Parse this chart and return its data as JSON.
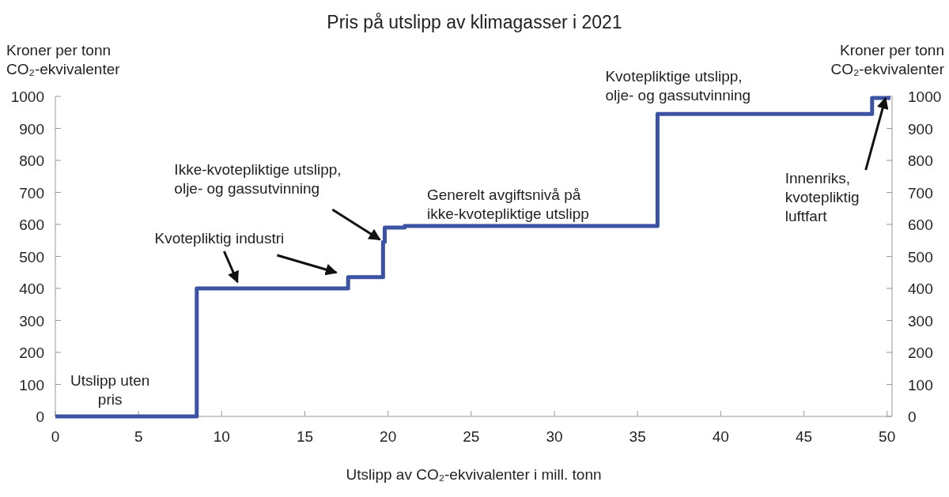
{
  "chart_data": {
    "type": "step",
    "title": "Pris på utslipp av klimagasser i 2021",
    "xlabel": "Utslipp av CO₂-ekvivalenter i mill. tonn",
    "ylabel": "Kroner per tonn\nCO₂-ekvivalenter",
    "y2label": "Kroner per tonn\nCO₂-ekvivalenter",
    "series": [
      {
        "color": "#3c53a4",
        "x": [
          0,
          8.5,
          17.6,
          19.7,
          19.8,
          21,
          36.2,
          49.1,
          50.2
        ],
        "values": [
          0,
          400,
          435,
          545,
          590,
          595,
          945,
          995,
          995
        ]
      }
    ],
    "xlim": [
      0,
      50.3
    ],
    "xticks": [
      0,
      5,
      10,
      15,
      20,
      25,
      30,
      35,
      40,
      45,
      50
    ],
    "ylim": [
      0,
      1000
    ],
    "yticks": [
      0,
      100,
      200,
      300,
      400,
      500,
      600,
      700,
      800,
      900,
      1000
    ],
    "y2lim": [
      0,
      1000
    ],
    "y2ticks": [
      0,
      100,
      200,
      300,
      400,
      500,
      600,
      700,
      800,
      900,
      1000
    ],
    "grid": false,
    "annotations": [
      {
        "text": "Utslipp uten\npris",
        "x": 4,
        "y": 0
      },
      {
        "text": "Kvotepliktig industri",
        "x": 11,
        "y": 400
      },
      {
        "text": "Ikke-kvotepliktige utslipp,\nolje- og gassutvinning",
        "x": 19.7,
        "y": 545
      },
      {
        "text": "Generelt avgiftsnivå på\nikke-kvotepliktige utslipp",
        "x": 28,
        "y": 595
      },
      {
        "text": "Kvotepliktige utslipp,\nolje- og  gassutvinning",
        "x": 42,
        "y": 945
      },
      {
        "text": "Innenriks,\nkvotepliktig\nluftfart",
        "x": 50,
        "y": 995
      }
    ]
  }
}
